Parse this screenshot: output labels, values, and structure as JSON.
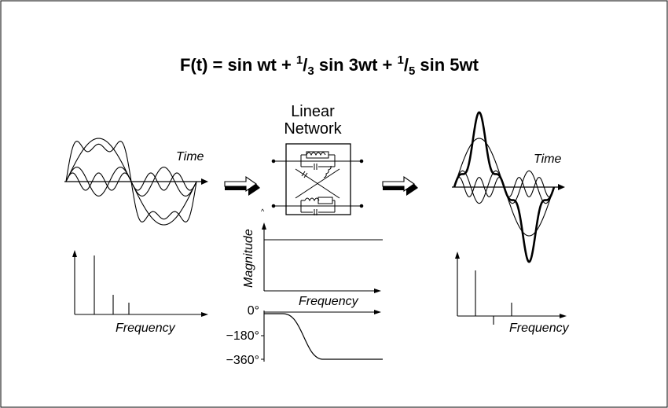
{
  "equation": {
    "lhs": "F(t) = sin wt + ",
    "term2_num": "1",
    "term2_den": "3",
    "term2_tail": "  sin 3wt + ",
    "term3_num": "1",
    "term3_den": "5",
    "term3_tail": "  sin 5wt"
  },
  "network": {
    "title_line1": "Linear",
    "title_line2": "Network"
  },
  "input": {
    "time_label": "Time",
    "spectrum_label": "Frequency",
    "harmonic_amplitudes": [
      1,
      0.3333,
      0.2
    ],
    "harmonic_orders": [
      1,
      3,
      5
    ]
  },
  "output": {
    "time_label": "Time",
    "spectrum_label": "Frequency"
  },
  "magnitude_plot": {
    "ylabel": "Magnitude",
    "xlabel": "Frequency"
  },
  "phase_plot": {
    "ticks": [
      "0°",
      "−180°",
      "−360°"
    ]
  },
  "colors": {
    "line": "#000000",
    "arrow_fill": "#000000",
    "background": "#ffffff"
  }
}
